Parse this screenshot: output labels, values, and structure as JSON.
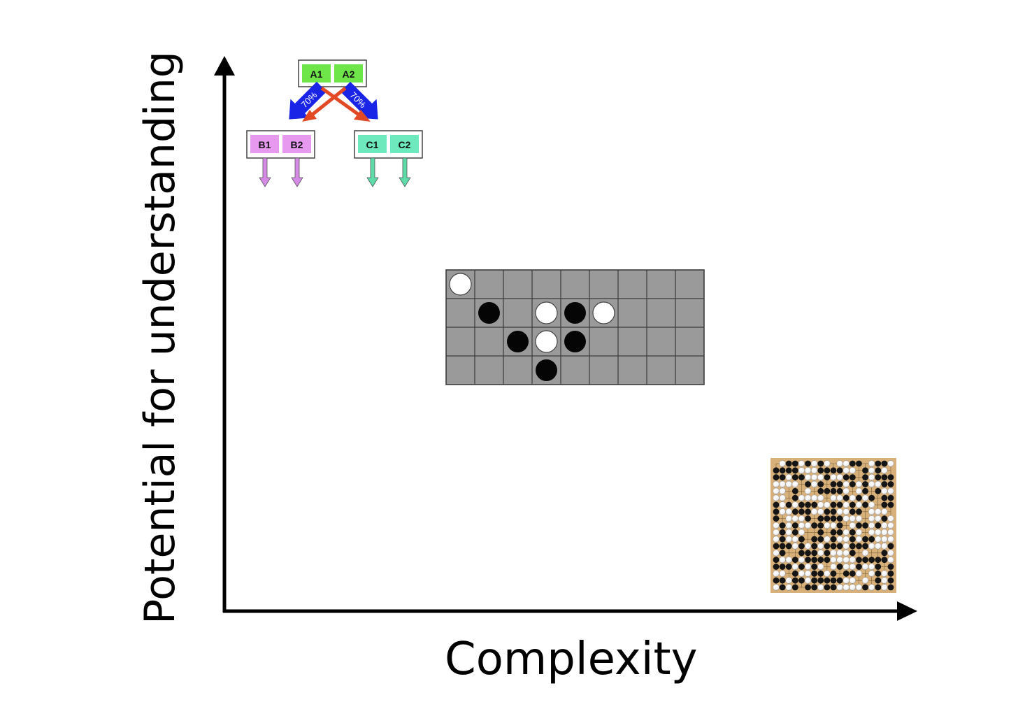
{
  "axes": {
    "x_label": "Complexity",
    "y_label": "Potential for understanding"
  },
  "tree_diagram": {
    "root": {
      "cells": [
        "A1",
        "A2"
      ],
      "color": "#6ee64a"
    },
    "left": {
      "cells": [
        "B1",
        "B2"
      ],
      "color": "#e699ee"
    },
    "right": {
      "cells": [
        "C1",
        "C2"
      ],
      "color": "#6ee8bd"
    },
    "left_branch_label": "70%",
    "right_branch_label": "70%",
    "branch_color": "#1a24e6",
    "cross_color": "#e24a26",
    "left_out_color": "#d58ae6",
    "right_out_color": "#5ddba8"
  },
  "grid_game": {
    "rows": 4,
    "cols": 9,
    "board_color": "#9a9a9a",
    "stones": [
      {
        "row": 0,
        "col": 0,
        "color": "white"
      },
      {
        "row": 1,
        "col": 1,
        "color": "black"
      },
      {
        "row": 1,
        "col": 3,
        "color": "white"
      },
      {
        "row": 1,
        "col": 4,
        "color": "black"
      },
      {
        "row": 1,
        "col": 5,
        "color": "white"
      },
      {
        "row": 2,
        "col": 2,
        "color": "black"
      },
      {
        "row": 2,
        "col": 3,
        "color": "white"
      },
      {
        "row": 2,
        "col": 4,
        "color": "black"
      },
      {
        "row": 3,
        "col": 3,
        "color": "black"
      }
    ]
  },
  "go_board": {
    "size": 19,
    "board_color": "#d7b07a"
  }
}
